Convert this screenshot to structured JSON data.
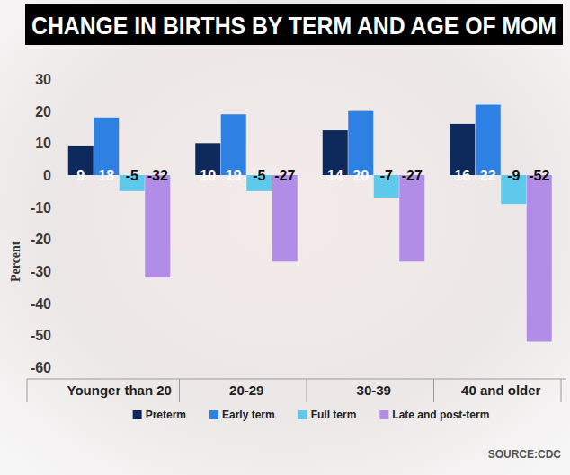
{
  "chart_data": {
    "type": "bar",
    "title": "CHANGE IN BIRTHS BY TERM AND AGE OF MOM",
    "y_label": "Percent",
    "source": "SOURCE:CDC",
    "categories": [
      "Younger than 20",
      "20-29",
      "30-39",
      "40 and older"
    ],
    "series": [
      {
        "name": "Preterm",
        "color": "#0e2a5c",
        "values": [
          9,
          10,
          14,
          16
        ]
      },
      {
        "name": "Early term",
        "color": "#2e80e2",
        "values": [
          18,
          19,
          20,
          22
        ]
      },
      {
        "name": "Full term",
        "color": "#5ec9ea",
        "values": [
          -5,
          -5,
          -7,
          -9
        ]
      },
      {
        "name": "Late and post-term",
        "color": "#b18de8",
        "values": [
          -32,
          -27,
          -27,
          -52
        ]
      }
    ],
    "ylim": [
      -60,
      30
    ],
    "yticks": [
      30,
      20,
      10,
      0,
      -10,
      -20,
      -30,
      -40,
      -50,
      -60
    ],
    "grid": false,
    "legend": "bottom",
    "data_labels": true
  }
}
